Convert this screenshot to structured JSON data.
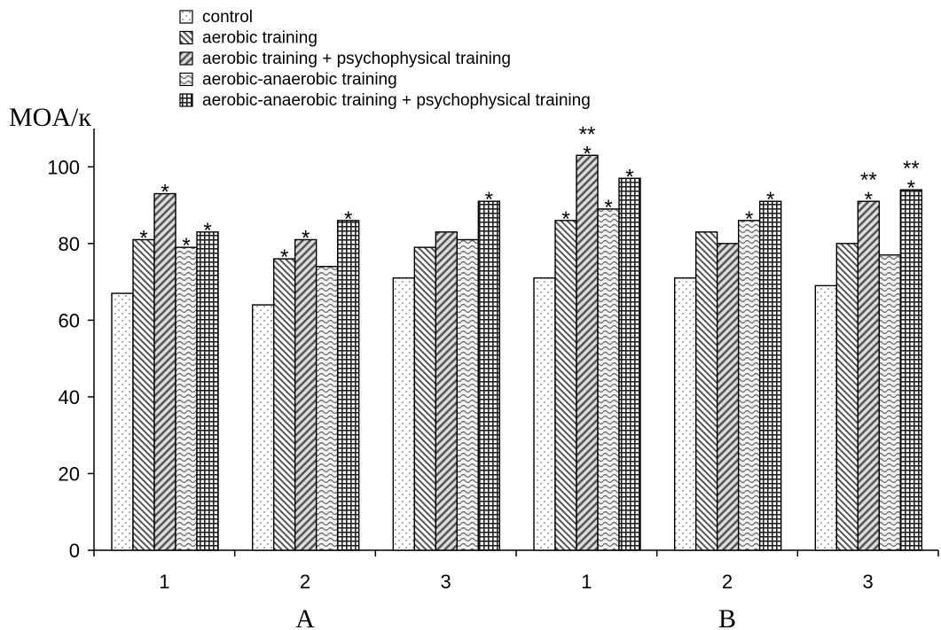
{
  "chart_data": {
    "type": "bar",
    "ylabel": "MOA/к",
    "ylim": [
      0,
      110
    ],
    "yticks": [
      0,
      20,
      40,
      60,
      80,
      100
    ],
    "grid": false,
    "legend_position": "top",
    "groups": [
      {
        "label": "A",
        "categories": [
          "1",
          "2",
          "3"
        ]
      },
      {
        "label": "B",
        "categories": [
          "1",
          "2",
          "3"
        ]
      }
    ],
    "categories": [
      "1",
      "2",
      "3",
      "1",
      "2",
      "3"
    ],
    "series": [
      {
        "name": "control",
        "pattern": "dots",
        "values": [
          67,
          64,
          71,
          71,
          71,
          69
        ],
        "marks": [
          "",
          "",
          "",
          "",
          "",
          ""
        ]
      },
      {
        "name": "aerobic training",
        "pattern": "diag-fine",
        "values": [
          81,
          76,
          79,
          86,
          83,
          80
        ],
        "marks": [
          "*",
          "*",
          "",
          "*",
          "",
          ""
        ]
      },
      {
        "name": "aerobic training + psychophysical training",
        "pattern": "diag-bold",
        "values": [
          93,
          81,
          83,
          103,
          80,
          91
        ],
        "marks": [
          "*",
          "*",
          "",
          "**\n*",
          "",
          "**\n*"
        ]
      },
      {
        "name": "aerobic-anaerobic training",
        "pattern": "waves",
        "values": [
          79,
          74,
          81,
          89,
          86,
          77
        ],
        "marks": [
          "*",
          "",
          "",
          "*",
          "*",
          ""
        ]
      },
      {
        "name": "aerobic-anaerobic training + psychophysical training",
        "pattern": "grid",
        "values": [
          83,
          86,
          91,
          97,
          91,
          94
        ],
        "marks": [
          "*",
          "*",
          "*",
          "*",
          "*",
          "**\n*"
        ]
      }
    ]
  }
}
